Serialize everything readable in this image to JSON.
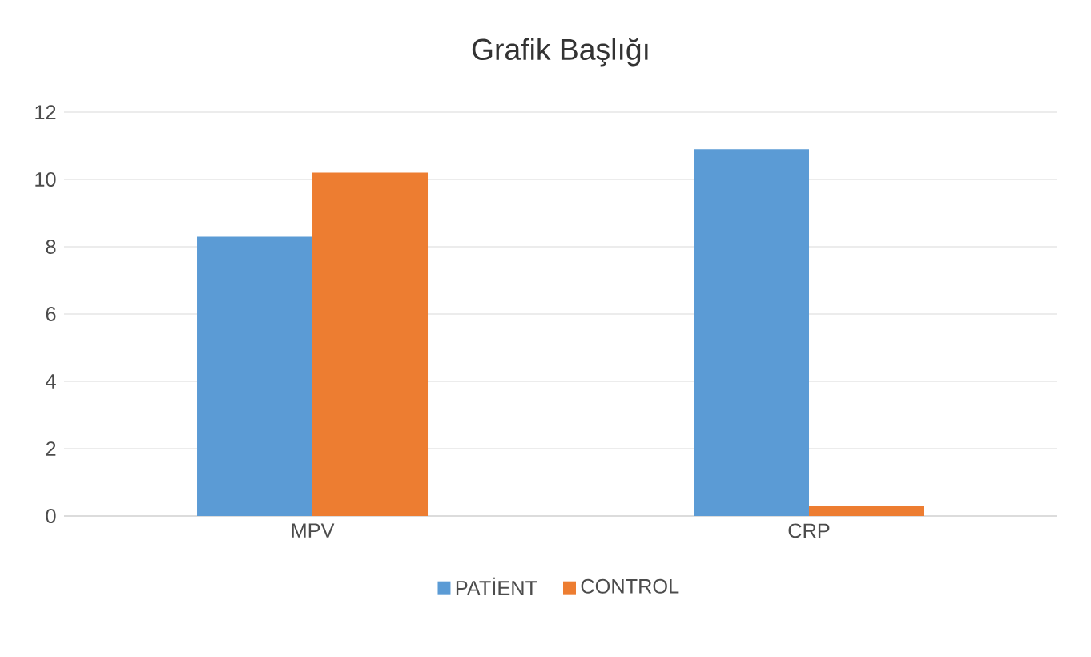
{
  "chart_data": {
    "type": "bar",
    "title": "Grafik Başlığı",
    "categories": [
      "MPV",
      "CRP"
    ],
    "series": [
      {
        "name": "PATİENT",
        "color": "#5b9bd5",
        "values": [
          8.3,
          10.9
        ]
      },
      {
        "name": "CONTROL",
        "color": "#ed7d31",
        "values": [
          10.2,
          0.3
        ]
      }
    ],
    "ylim": [
      0,
      12
    ],
    "yticks": [
      0,
      2,
      4,
      6,
      8,
      10,
      12
    ],
    "grid": "y",
    "legend": "bottom"
  }
}
